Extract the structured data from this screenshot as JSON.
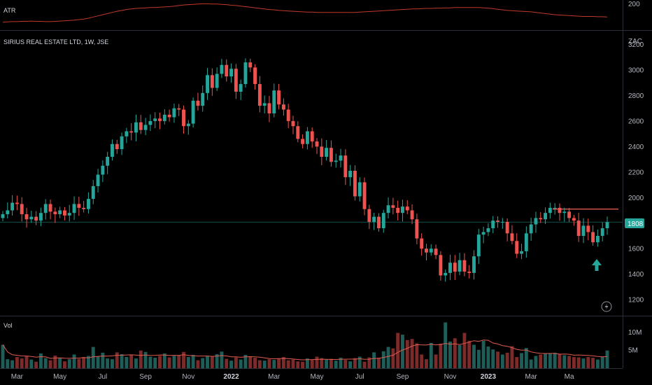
{
  "chart_data": {
    "type": "candlestick",
    "instrument": "SIRIUS REAL ESTATE LTD, 1W, JSE",
    "currency": "ZAC",
    "current_price": "1808",
    "atr_label": "ATR",
    "atr_tick": "200",
    "vol_label": "Vol",
    "volume_ticks": [
      "10M",
      "5M"
    ],
    "price_ticks": [
      "3200",
      "3000",
      "2800",
      "2600",
      "2400",
      "2200",
      "2000",
      "1800",
      "1600",
      "1400",
      "1200"
    ],
    "price_range": [
      1080,
      3280
    ],
    "x_labels": [
      "Mar",
      "May",
      "Jul",
      "Sep",
      "Nov",
      "2022",
      "Mar",
      "May",
      "Jul",
      "Sep",
      "Nov",
      "2023",
      "Mar",
      "Ma"
    ],
    "resistance_level": 1910,
    "current_level": 1808,
    "colors": {
      "up": "#26a69a",
      "down": "#ef5350",
      "vol_up": "#1f5e58",
      "vol_down": "#7d2a2a",
      "atr": "#c0392b",
      "resistance": "#e05a4f",
      "current_line": "#26a69a",
      "arrow": "#26a69a",
      "grid": "#2a2e39",
      "axis_text": "#b2b5be"
    },
    "closes": [
      1870,
      1900,
      1960,
      1950,
      1870,
      1830,
      1850,
      1820,
      1880,
      1950,
      1890,
      1870,
      1900,
      1860,
      1880,
      1950,
      1920,
      1910,
      1990,
      2090,
      2180,
      2250,
      2320,
      2420,
      2380,
      2480,
      2520,
      2510,
      2590,
      2530,
      2570,
      2600,
      2620,
      2600,
      2650,
      2630,
      2700,
      2690,
      2560,
      2580,
      2760,
      2720,
      2820,
      2960,
      2860,
      2970,
      3040,
      2950,
      3010,
      2830,
      2890,
      3060,
      3020,
      2890,
      2720,
      2740,
      2660,
      2840,
      2730,
      2690,
      2600,
      2560,
      2460,
      2420,
      2520,
      2440,
      2400,
      2320,
      2390,
      2280,
      2290,
      2330,
      2160,
      2210,
      2010,
      2120,
      1910,
      1810,
      1850,
      1760,
      1880,
      1940,
      1920,
      1880,
      1930,
      1900,
      1830,
      1680,
      1600,
      1570,
      1600,
      1550,
      1390,
      1410,
      1490,
      1420,
      1510,
      1420,
      1410,
      1540,
      1710,
      1730,
      1760,
      1820,
      1810,
      1810,
      1720,
      1660,
      1560,
      1580,
      1720,
      1790,
      1840,
      1830,
      1880,
      1920,
      1920,
      1880,
      1890,
      1840,
      1820,
      1700,
      1780,
      1730,
      1650,
      1700,
      1760,
      1808
    ],
    "volumes": [
      6.5,
      2.5,
      2.2,
      3.1,
      2.7,
      3.3,
      2.4,
      1.8,
      4.1,
      2.8,
      2.2,
      3.5,
      2.9,
      1.9,
      2.5,
      3.8,
      2.6,
      3.1,
      3.4,
      5.9,
      3.3,
      4.3,
      2.7,
      2.5,
      4.4,
      3.9,
      3.1,
      3.6,
      2.7,
      4.9,
      4.5,
      3.2,
      2.9,
      3.4,
      4.1,
      3.0,
      3.4,
      3.5,
      4.5,
      3.1,
      3.7,
      2.2,
      2.8,
      3.4,
      3.2,
      3.9,
      4.6,
      2.6,
      2.1,
      3.0,
      2.4,
      3.7,
      3.1,
      2.9,
      2.2,
      2.1,
      2.5,
      2.3,
      2.6,
      3.1,
      2.2,
      2.4,
      1.9,
      1.8,
      2.7,
      2.3,
      3.2,
      2.8,
      2.4,
      2.6,
      2.1,
      2.9,
      2.3,
      1.9,
      2.8,
      3.2,
      1.8,
      3.0,
      4.4,
      2.9,
      4.7,
      5.9,
      5.5,
      9.8,
      9.3,
      7.8,
      8.1,
      6.9,
      3.8,
      2.5,
      7.0,
      3.8,
      6.8,
      12.7,
      7.4,
      8.3,
      6.4,
      9.8,
      7.6,
      6.5,
      5.1,
      7.6,
      6.0,
      5.2,
      4.6,
      3.8,
      4.3,
      6.1,
      3.1,
      4.2,
      5.6,
      2.4,
      3.4,
      3.8,
      4.0,
      4.1,
      4.3,
      4.0,
      3.6,
      3.4,
      3.1,
      3.0,
      2.7,
      3.1,
      2.9,
      2.4,
      3.2,
      4.9
    ],
    "atr": [
      175,
      176,
      177,
      177,
      178,
      178,
      179,
      178,
      178,
      177,
      177,
      178,
      179,
      180,
      181,
      182,
      184,
      186,
      189,
      193,
      197,
      201,
      205,
      209,
      213,
      216,
      219,
      221,
      223,
      224,
      225,
      226,
      226,
      227,
      228,
      229,
      231,
      233,
      235,
      236,
      237,
      238,
      239,
      239,
      238,
      238,
      237,
      236,
      234,
      233,
      231,
      229,
      227,
      225,
      223,
      221,
      219,
      218,
      216,
      215,
      214,
      213,
      212,
      211,
      210,
      210,
      209,
      209,
      209,
      209,
      209,
      209,
      209,
      209,
      209,
      210,
      211,
      212,
      213,
      214,
      215,
      216,
      217,
      218,
      219,
      220,
      221,
      221,
      222,
      223,
      223,
      224,
      224,
      225,
      225,
      226,
      226,
      226,
      226,
      226,
      226,
      225,
      224,
      222,
      220,
      218,
      216,
      215,
      214,
      213,
      212,
      211,
      209,
      207,
      205,
      203,
      201,
      200,
      199,
      198,
      197,
      196,
      195,
      195,
      195,
      194,
      194,
      193
    ]
  }
}
